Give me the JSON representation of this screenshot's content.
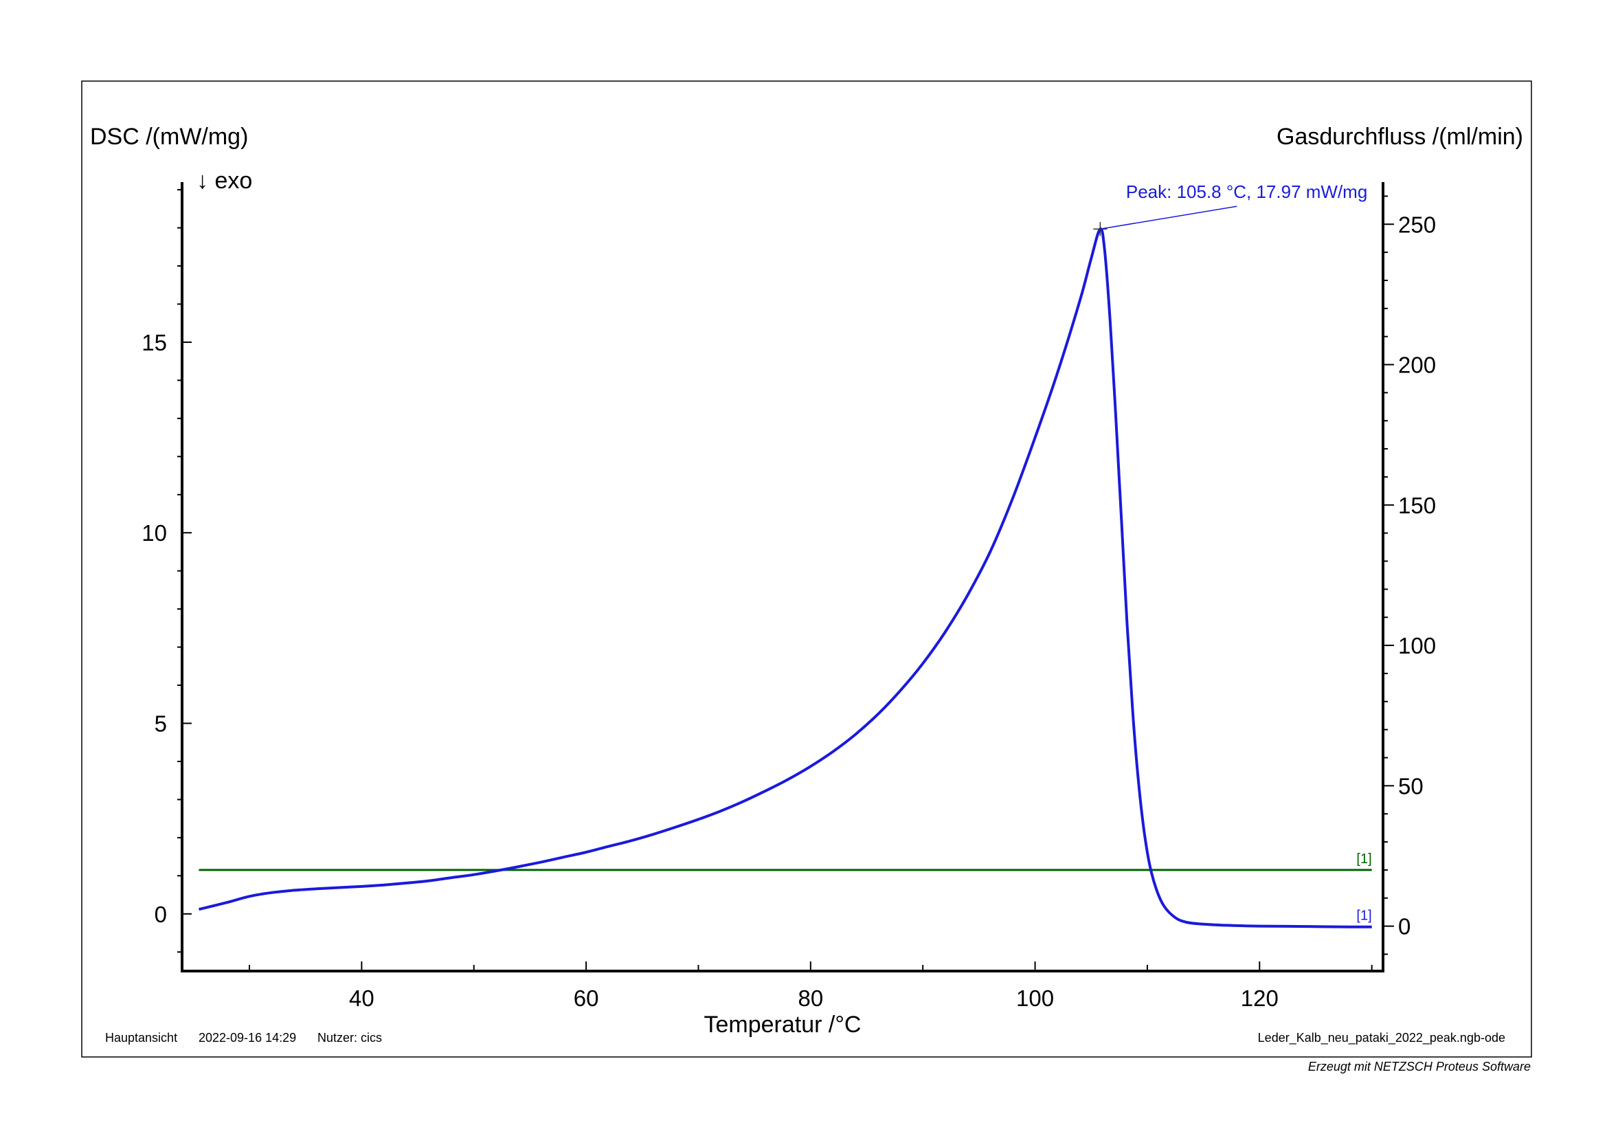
{
  "chart_data": {
    "type": "line",
    "xlabel": "Temperatur /°C",
    "ylabel_left": "DSC /(mW/mg)",
    "ylabel_right": "Gasdurchfluss /(ml/min)",
    "direction_label": "↓ exo",
    "xlim": [
      24,
      131
    ],
    "ylim_left": [
      -1.5,
      19.2
    ],
    "ylim_right": [
      -16,
      265
    ],
    "x_ticks": [
      40,
      60,
      80,
      100,
      120
    ],
    "y_left_ticks": [
      0,
      5,
      10,
      15
    ],
    "y_right_ticks": [
      0,
      50,
      100,
      150,
      200,
      250
    ],
    "grid": false,
    "series": [
      {
        "axis": "left",
        "color": "#1a1adc",
        "label": "[1]",
        "x": [
          25.5,
          28,
          30,
          32,
          34,
          36,
          38,
          40,
          42,
          44,
          46,
          48,
          50,
          52,
          54,
          56,
          58,
          60,
          62,
          64,
          66,
          68,
          70,
          72,
          74,
          76,
          78,
          80,
          82,
          84,
          86,
          88,
          90,
          92,
          94,
          96,
          98,
          100,
          102,
          104,
          105,
          105.8,
          106.2,
          106.7,
          107.2,
          107.7,
          108.2,
          108.7,
          109.2,
          109.7,
          110.2,
          110.8,
          111.5,
          112.5,
          113.5,
          115,
          117,
          120,
          124,
          128,
          130
        ],
        "y": [
          0.12,
          0.3,
          0.46,
          0.56,
          0.62,
          0.66,
          0.69,
          0.72,
          0.76,
          0.81,
          0.87,
          0.95,
          1.03,
          1.13,
          1.24,
          1.36,
          1.49,
          1.62,
          1.77,
          1.92,
          2.09,
          2.28,
          2.48,
          2.7,
          2.95,
          3.23,
          3.53,
          3.87,
          4.26,
          4.71,
          5.24,
          5.86,
          6.57,
          7.4,
          8.37,
          9.5,
          10.9,
          12.5,
          14.2,
          16.1,
          17.2,
          17.97,
          17.4,
          15.5,
          13.0,
          10.3,
          7.6,
          5.3,
          3.5,
          2.2,
          1.3,
          0.65,
          0.2,
          -0.1,
          -0.22,
          -0.27,
          -0.3,
          -0.32,
          -0.33,
          -0.34,
          -0.34
        ]
      },
      {
        "axis": "right",
        "color": "#006400",
        "label": "[1]",
        "x": [
          25.5,
          130
        ],
        "y": [
          20,
          20
        ]
      }
    ],
    "annotations": [
      {
        "text": "Peak: 105.8 °C, 17.97 mW/mg",
        "x": 105.8,
        "y": 17.97
      }
    ]
  },
  "footer": {
    "view": "Hauptansicht",
    "datetime": "2022-09-16 14:29",
    "user": "Nutzer: cics",
    "file": "Leder_Kalb_neu_pataki_2022_peak.ngb-ode",
    "software": "Erzeugt mit NETZSCH Proteus Software"
  }
}
